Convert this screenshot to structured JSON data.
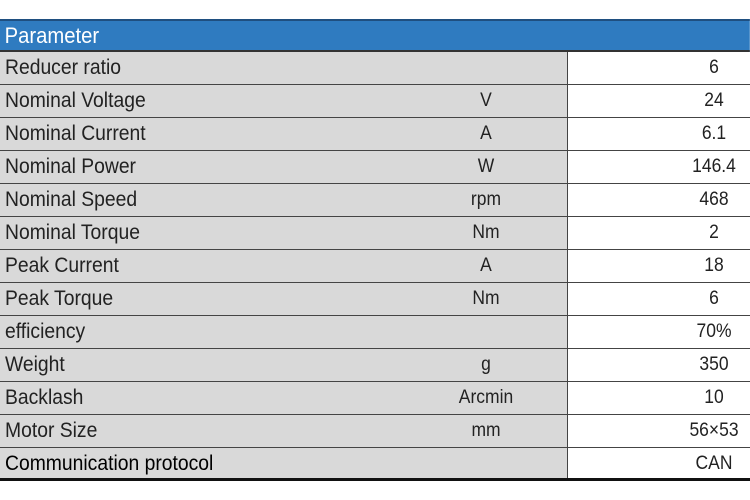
{
  "header": {
    "title": "Parameter",
    "color": "#2f7bc0"
  },
  "rows": [
    {
      "name": "Reducer ratio",
      "unit": "",
      "value": "6"
    },
    {
      "name": "Nominal Voltage",
      "unit": "V",
      "value": "24"
    },
    {
      "name": "Nominal Current",
      "unit": "A",
      "value": "6.1"
    },
    {
      "name": "Nominal Power",
      "unit": "W",
      "value": "146.4"
    },
    {
      "name": "Nominal Speed",
      "unit": "rpm",
      "value": "468"
    },
    {
      "name": "Nominal Torque",
      "unit": "Nm",
      "value": "2"
    },
    {
      "name": "Peak Current",
      "unit": "A",
      "value": "18"
    },
    {
      "name": "Peak Torque",
      "unit": "Nm",
      "value": "6"
    },
    {
      "name": "efficiency",
      "unit": "",
      "value": "70%"
    },
    {
      "name": "Weight",
      "unit": "g",
      "value": "350"
    },
    {
      "name": "Backlash",
      "unit": "Arcmin",
      "value": "10"
    },
    {
      "name": "Motor Size",
      "unit": "mm",
      "value": "56×53"
    },
    {
      "name": "Communication protocol",
      "unit": "",
      "value": "CAN"
    }
  ]
}
